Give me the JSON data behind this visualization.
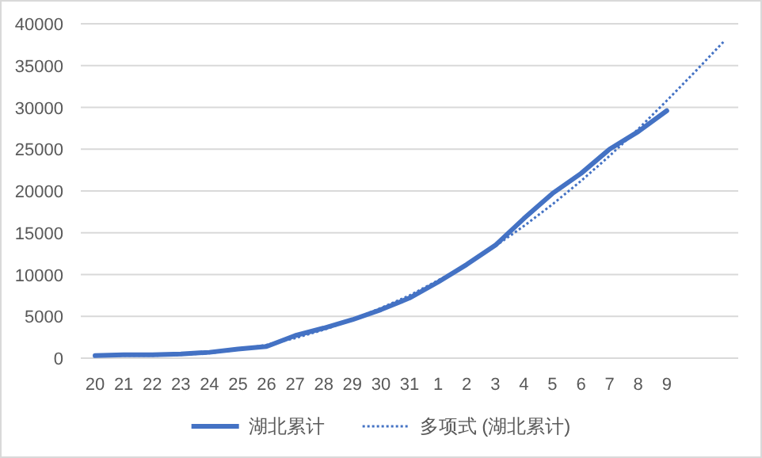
{
  "chart_data": {
    "type": "line",
    "categories": [
      "20",
      "21",
      "22",
      "23",
      "24",
      "25",
      "26",
      "27",
      "28",
      "29",
      "30",
      "31",
      "1",
      "2",
      "3",
      "4",
      "5",
      "6",
      "7",
      "8",
      "9",
      null,
      null
    ],
    "series": [
      {
        "name": "湖北累计",
        "color": "#4472c4",
        "line_style": "solid",
        "values": [
          300,
          400,
          400,
          500,
          700,
          1100,
          1400,
          2700,
          3600,
          4600,
          5800,
          7200,
          9100,
          11200,
          13500,
          16700,
          19700,
          22100,
          25000,
          27100,
          29600,
          null,
          null
        ]
      },
      {
        "name": "多项式 (湖北累计)",
        "color": "#4472c4",
        "line_style": "dotted",
        "values": [
          400,
          300,
          300,
          400,
          600,
          1000,
          1600,
          2400,
          3400,
          4600,
          6000,
          7500,
          9300,
          11200,
          13400,
          15800,
          18400,
          21200,
          24200,
          27400,
          30800,
          34300,
          37900
        ]
      }
    ],
    "ylim": [
      0,
      40000
    ],
    "yticks": [
      0,
      5000,
      10000,
      15000,
      20000,
      25000,
      30000,
      35000,
      40000
    ],
    "grid": "y",
    "legend": "bottom",
    "marker": "none"
  }
}
